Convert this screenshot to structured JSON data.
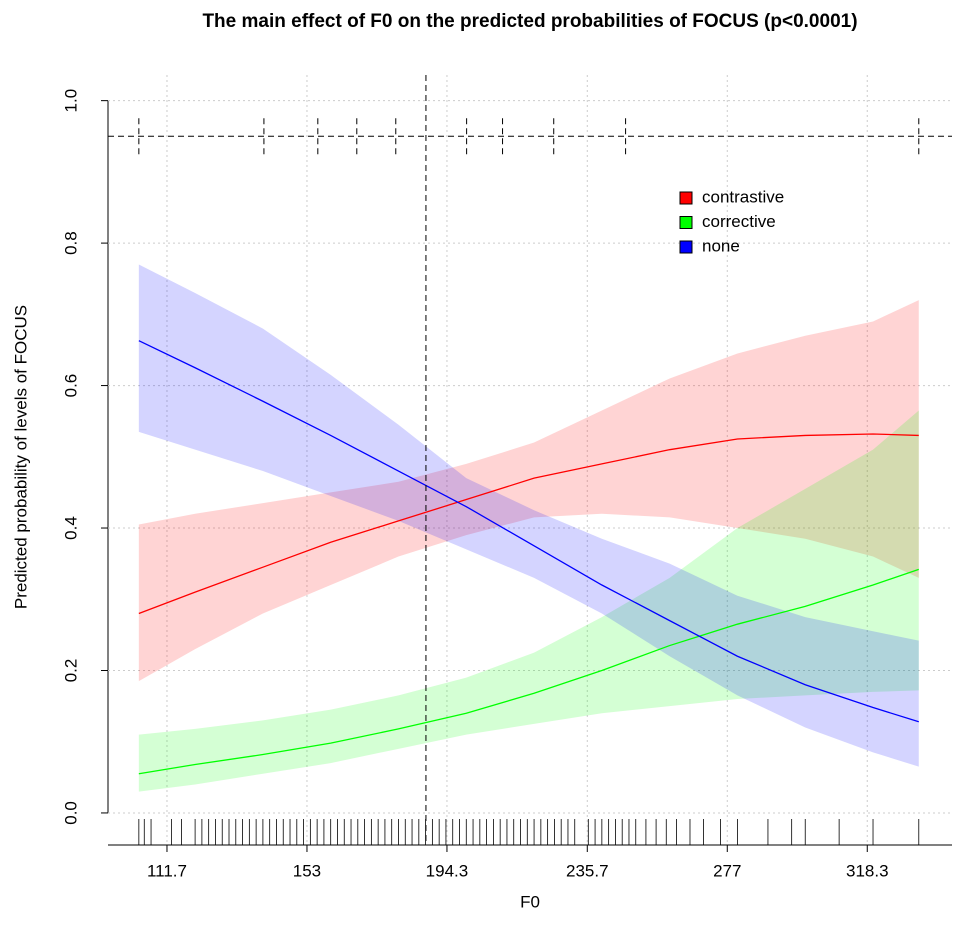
{
  "chart_data": {
    "type": "line",
    "title": "The main effect of F0 on the predicted probabilities of FOCUS (p<0.0001)",
    "x_label": "F0",
    "y_label": "Predicted probability of levels of FOCUS",
    "x": [
      103.4,
      120,
      140,
      160,
      180,
      200,
      220,
      240,
      260,
      280,
      300,
      320,
      333.5
    ],
    "series": [
      {
        "name": "contrastive",
        "color": "#ff0000",
        "values": [
          0.28,
          0.31,
          0.345,
          0.38,
          0.41,
          0.44,
          0.47,
          0.49,
          0.51,
          0.525,
          0.53,
          0.532,
          0.53
        ],
        "lower": [
          0.185,
          0.23,
          0.28,
          0.32,
          0.36,
          0.39,
          0.415,
          0.42,
          0.415,
          0.4,
          0.385,
          0.36,
          0.33
        ],
        "upper": [
          0.405,
          0.42,
          0.435,
          0.45,
          0.465,
          0.49,
          0.52,
          0.565,
          0.61,
          0.645,
          0.67,
          0.69,
          0.72
        ]
      },
      {
        "name": "corrective",
        "color": "#00ff00",
        "values": [
          0.055,
          0.068,
          0.082,
          0.098,
          0.118,
          0.14,
          0.168,
          0.2,
          0.235,
          0.265,
          0.29,
          0.32,
          0.342
        ],
        "lower": [
          0.03,
          0.04,
          0.055,
          0.07,
          0.09,
          0.11,
          0.125,
          0.14,
          0.15,
          0.16,
          0.165,
          0.17,
          0.172
        ],
        "upper": [
          0.11,
          0.118,
          0.13,
          0.145,
          0.165,
          0.19,
          0.225,
          0.275,
          0.33,
          0.4,
          0.455,
          0.51,
          0.565
        ]
      },
      {
        "name": "none",
        "color": "#0000ff",
        "values": [
          0.663,
          0.625,
          0.578,
          0.53,
          0.48,
          0.43,
          0.375,
          0.32,
          0.27,
          0.22,
          0.18,
          0.148,
          0.128
        ],
        "lower": [
          0.535,
          0.51,
          0.48,
          0.445,
          0.41,
          0.37,
          0.33,
          0.28,
          0.22,
          0.165,
          0.12,
          0.085,
          0.065
        ],
        "upper": [
          0.77,
          0.73,
          0.68,
          0.615,
          0.545,
          0.47,
          0.425,
          0.385,
          0.35,
          0.305,
          0.275,
          0.255,
          0.242
        ]
      }
    ],
    "band_opacity": 0.17,
    "median_line": 188.1,
    "quantile_line_y": 0.95,
    "quantile_ticks": [
      103.4,
      140.3,
      156.2,
      167.7,
      179.2,
      200.1,
      210.7,
      225.8,
      247.0,
      333.5
    ],
    "rug": [
      103.4,
      105,
      107,
      113,
      116,
      120,
      122,
      124,
      126,
      128,
      130,
      132,
      134,
      136,
      138,
      140,
      142,
      144,
      146,
      148,
      150,
      152,
      154,
      156,
      158,
      160,
      162,
      164,
      166,
      168,
      170,
      172,
      174,
      176,
      178,
      180,
      182,
      184,
      186,
      188,
      190,
      192,
      194,
      196,
      198,
      200,
      202,
      204,
      206,
      208,
      210,
      212,
      214,
      216,
      218,
      220,
      222,
      224,
      226,
      228,
      230,
      232,
      236,
      238,
      240,
      242,
      244,
      246,
      248,
      250,
      253,
      256,
      259,
      262,
      266,
      270,
      275,
      280,
      289,
      296,
      300,
      310,
      320,
      333.5
    ],
    "xlim": [
      94.3,
      343.3
    ],
    "ylim": [
      -0.045,
      1.036
    ],
    "xticks": [
      111.7,
      153,
      194.3,
      235.7,
      277,
      318.3
    ],
    "yticks": [
      {
        "value": 0,
        "label": "0.0"
      },
      0.2,
      0.4,
      0.6,
      0.8,
      {
        "value": 1,
        "label": "1.0"
      }
    ],
    "grid": true,
    "legend": "topright"
  }
}
